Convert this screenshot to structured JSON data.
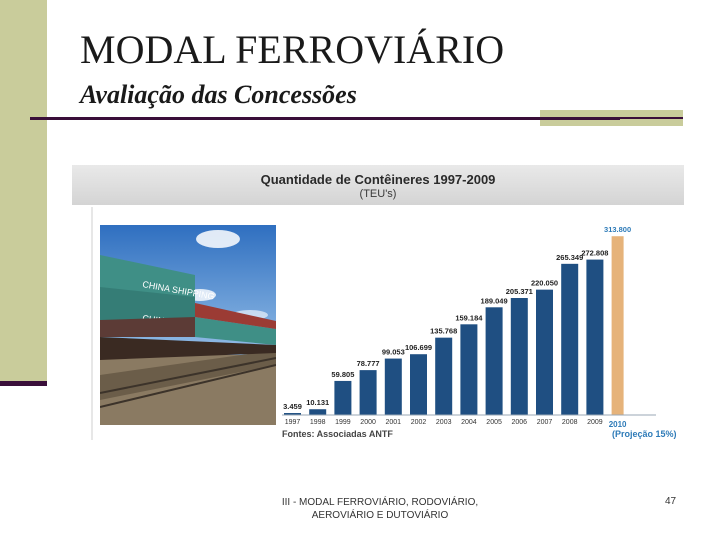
{
  "slide": {
    "title": "MODAL FERROVIÁRIO",
    "subtitle": "Avaliação das Concessões",
    "footer_line1": "III - MODAL FERROVIÁRIO, RODOVIÁRIO,",
    "footer_line2": "AEROVIÁRIO E DUTOVIÁRIO",
    "page_number": "47"
  },
  "photo": {
    "container_text_1": "CHINA SHIPPING",
    "container_text_2": "CHINA SHIPPING"
  },
  "chart_data": {
    "type": "bar",
    "title": "Quantidade de Contêineres 1997-2009",
    "subtitle": "(TEU's)",
    "categories": [
      "1997",
      "1998",
      "1999",
      "2000",
      "2001",
      "2002",
      "2003",
      "2004",
      "2005",
      "2006",
      "2007",
      "2008",
      "2009",
      "2010"
    ],
    "values": [
      3459,
      10131,
      59805,
      78777,
      99053,
      106699,
      135768,
      159184,
      189049,
      205371,
      220050,
      265349,
      272808,
      313800
    ],
    "value_labels": [
      "3.459",
      "10.131",
      "59.805",
      "78.777",
      "99.053",
      "106.699",
      "135.768",
      "159.184",
      "189.049",
      "205.371",
      "220.050",
      "265.349",
      "272.808",
      "313.800"
    ],
    "source": "Fontes: Associadas ANTF",
    "projection_note": "(Projeção 15%)",
    "projection_label": "2010",
    "ylim": [
      0,
      330000
    ],
    "colors": {
      "bar": "#1f4f82",
      "projection": "#e6b37a",
      "projection_label": "#2e7bb8"
    }
  }
}
